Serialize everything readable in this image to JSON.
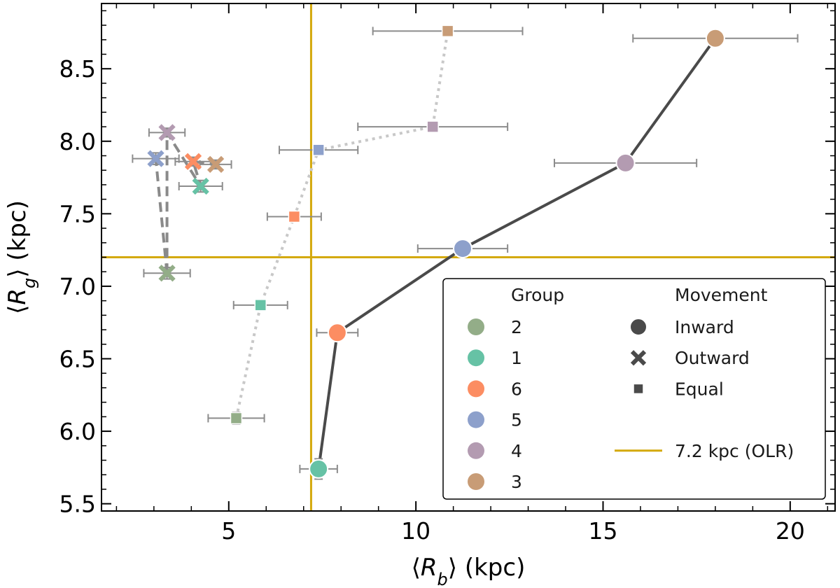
{
  "chart_data": {
    "type": "scatter",
    "title": "",
    "xlabel": "⟨R_b⟩ (kpc)",
    "ylabel": "⟨R_g⟩ (kpc)",
    "xlim": [
      1.6,
      21.2
    ],
    "ylim": [
      5.45,
      8.95
    ],
    "x_ticks": [
      5,
      10,
      15,
      20
    ],
    "x_tick_labels": [
      "5",
      "10",
      "15",
      "20"
    ],
    "y_ticks": [
      5.5,
      6.0,
      6.5,
      7.0,
      7.5,
      8.0,
      8.5
    ],
    "y_tick_labels": [
      "5.5",
      "6.0",
      "6.5",
      "7.0",
      "7.5",
      "8.0",
      "8.5"
    ],
    "grid": false,
    "reference_lines": [
      {
        "orientation": "vertical",
        "value": 7.2,
        "label": "7.2 kpc (OLR)",
        "color": "#d4a90c"
      },
      {
        "orientation": "horizontal",
        "value": 7.2,
        "label": "7.2 kpc (OLR)",
        "color": "#d4a90c"
      }
    ],
    "group_colors": {
      "2": "#93ad88",
      "1": "#66c2a5",
      "6": "#fc8d62",
      "5": "#8da0cb",
      "4": "#b39bb1",
      "3": "#c89c76"
    },
    "series": [
      {
        "name": "Inward",
        "marker": "circle",
        "line_style": "solid",
        "line_color": "#4a4a4a",
        "points": [
          {
            "group": "1",
            "x": 7.4,
            "y": 5.74,
            "xerr": 0.5,
            "yerr": 0.07
          },
          {
            "group": "6",
            "x": 7.9,
            "y": 6.68,
            "xerr": 0.55,
            "yerr": 0.05
          },
          {
            "group": "5",
            "x": 11.25,
            "y": 7.26,
            "xerr": 1.2,
            "yerr": 0.05
          },
          {
            "group": "4",
            "x": 15.6,
            "y": 7.85,
            "xerr": 1.9,
            "yerr": 0.04
          },
          {
            "group": "3",
            "x": 18.0,
            "y": 8.71,
            "xerr": 2.2,
            "yerr": 0.04
          }
        ]
      },
      {
        "name": "Outward",
        "marker": "x",
        "line_style": "dashed",
        "line_color": "#8a8a8a",
        "points": [
          {
            "group": "2",
            "x": 3.35,
            "y": 7.09,
            "xerr": 0.62,
            "yerr": 0.04
          },
          {
            "group": "5",
            "x": 3.05,
            "y": 7.88,
            "xerr": 0.62,
            "yerr": 0.04
          },
          {
            "group": "4",
            "x": 3.35,
            "y": 8.06,
            "xerr": 0.48,
            "yerr": 0.03
          },
          {
            "group": "1",
            "x": 4.25,
            "y": 7.69,
            "xerr": 0.58,
            "yerr": 0.04
          },
          {
            "group": "6",
            "x": 4.05,
            "y": 7.86,
            "xerr": 0.48,
            "yerr": 0.03
          },
          {
            "group": "3",
            "x": 4.65,
            "y": 7.84,
            "xerr": 0.42,
            "yerr": 0.03
          }
        ],
        "paths": [
          [
            "2",
            "5"
          ],
          [
            "2",
            "4",
            "1",
            "6",
            "3"
          ]
        ]
      },
      {
        "name": "Equal",
        "marker": "square",
        "line_style": "dotted",
        "line_color": "#c8c8c8",
        "points": [
          {
            "group": "2",
            "x": 5.2,
            "y": 6.09,
            "xerr": 0.75,
            "yerr": 0.04
          },
          {
            "group": "1",
            "x": 5.85,
            "y": 6.87,
            "xerr": 0.72,
            "yerr": 0.03
          },
          {
            "group": "6",
            "x": 6.75,
            "y": 7.48,
            "xerr": 0.72,
            "yerr": 0.03
          },
          {
            "group": "5",
            "x": 7.4,
            "y": 7.94,
            "xerr": 1.05,
            "yerr": 0.03
          },
          {
            "group": "4",
            "x": 10.45,
            "y": 8.1,
            "xerr": 2.0,
            "yerr": 0.03
          },
          {
            "group": "3",
            "x": 10.85,
            "y": 8.76,
            "xerr": 2.0,
            "yerr": 0.03
          }
        ]
      }
    ],
    "legend": {
      "placement": "lower-right",
      "group_title": "Group",
      "groups": [
        "2",
        "1",
        "6",
        "5",
        "4",
        "3"
      ],
      "movement_title": "Movement",
      "movements": [
        {
          "label": "Inward",
          "marker": "circle"
        },
        {
          "label": "Outward",
          "marker": "x"
        },
        {
          "label": "Equal",
          "marker": "square"
        }
      ],
      "olr_label": "7.2 kpc (OLR)"
    }
  }
}
